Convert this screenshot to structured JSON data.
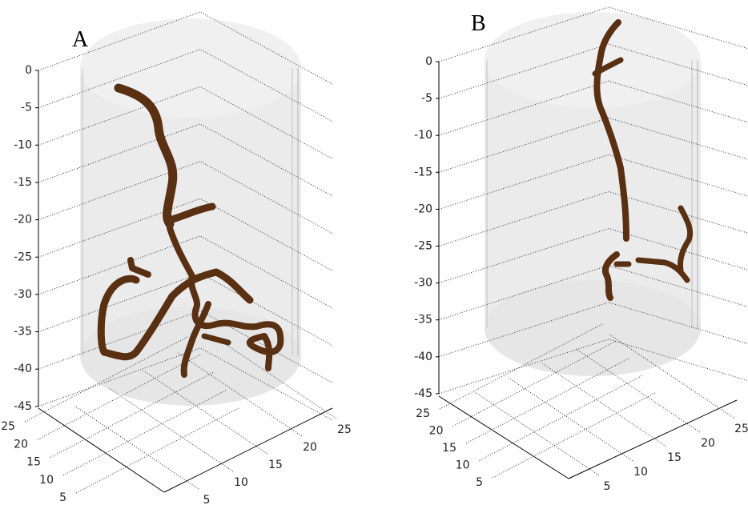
{
  "panels": [
    {
      "label": "A",
      "z_ticks": [
        0,
        -5,
        -10,
        -15,
        -20,
        -25,
        -30,
        -35,
        -40,
        -45
      ],
      "y_ticks": [
        25,
        20,
        15,
        10,
        5
      ],
      "x_ticks": [
        5,
        10,
        15,
        20,
        25
      ]
    },
    {
      "label": "B",
      "z_ticks": [
        0,
        -5,
        -10,
        -15,
        -20,
        -25,
        -30,
        -35,
        -40,
        -45
      ],
      "y_ticks": [
        25,
        20,
        15,
        10,
        5
      ],
      "x_ticks": [
        5,
        10,
        15,
        20,
        25
      ]
    }
  ]
}
